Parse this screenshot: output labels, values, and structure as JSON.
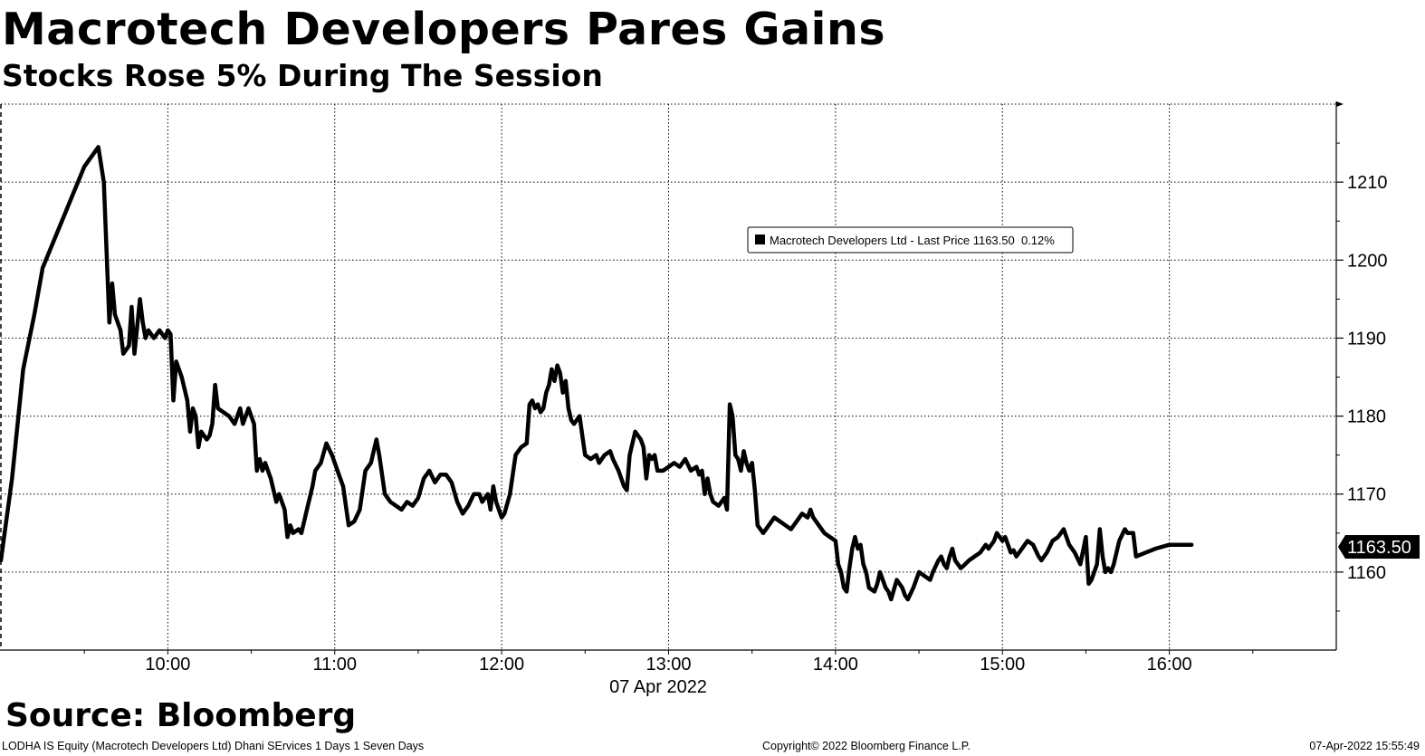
{
  "chart_data": {
    "type": "line",
    "title": "Macrotech Developers Pares Gains",
    "subtitle": "Stocks Rose 5% During The Session",
    "x_ticks": [
      "10:00",
      "11:00",
      "12:00",
      "13:00",
      "14:00",
      "15:00",
      "16:00"
    ],
    "date_label": "07 Apr 2022",
    "y_ticks": [
      1160,
      1170,
      1180,
      1190,
      1200,
      1210
    ],
    "ylim": [
      1150,
      1220
    ],
    "xlim": [
      "09:00",
      "17:00"
    ],
    "grid": true,
    "legend": {
      "swatch_color": "#000000",
      "text": "Macrotech Developers Ltd - Last Price 1163.50  0.12%",
      "placement": "top-center"
    },
    "last_value_label": "1163.50",
    "series": [
      {
        "color": "#000000",
        "values": [
          [
            "09:00",
            1161.5
          ],
          [
            "09:04",
            1172
          ],
          [
            "09:08",
            1186
          ],
          [
            "09:12",
            1193
          ],
          [
            "09:15",
            1199
          ],
          [
            "09:30",
            1212
          ],
          [
            "09:35",
            1214.5
          ],
          [
            "09:37",
            1210
          ],
          [
            "09:39",
            1192
          ],
          [
            "09:40",
            1197
          ],
          [
            "09:41",
            1193
          ],
          [
            "09:43",
            1191
          ],
          [
            "09:44",
            1188
          ],
          [
            "09:46",
            1189
          ],
          [
            "09:47",
            1194
          ],
          [
            "09:48",
            1188
          ],
          [
            "09:50",
            1195
          ],
          [
            "09:51",
            1192
          ],
          [
            "09:52",
            1190
          ],
          [
            "09:53",
            1191
          ],
          [
            "09:55",
            1190
          ],
          [
            "09:57",
            1191
          ],
          [
            "09:59",
            1190
          ],
          [
            "10:00",
            1191
          ],
          [
            "10:01",
            1190.5
          ],
          [
            "10:02",
            1182
          ],
          [
            "10:03",
            1187
          ],
          [
            "10:05",
            1185
          ],
          [
            "10:07",
            1182
          ],
          [
            "10:08",
            1178
          ],
          [
            "10:09",
            1181
          ],
          [
            "10:10",
            1180
          ],
          [
            "10:11",
            1176
          ],
          [
            "10:12",
            1178
          ],
          [
            "10:14",
            1177
          ],
          [
            "10:15",
            1177.5
          ],
          [
            "10:16",
            1179
          ],
          [
            "10:17",
            1184
          ],
          [
            "10:18",
            1181
          ],
          [
            "10:20",
            1180.5
          ],
          [
            "10:22",
            1180
          ],
          [
            "10:24",
            1179
          ],
          [
            "10:26",
            1181
          ],
          [
            "10:27",
            1179
          ],
          [
            "10:29",
            1181
          ],
          [
            "10:31",
            1179
          ],
          [
            "10:32",
            1173
          ],
          [
            "10:33",
            1174.5
          ],
          [
            "10:34",
            1173
          ],
          [
            "10:35",
            1174
          ],
          [
            "10:37",
            1172
          ],
          [
            "10:39",
            1169
          ],
          [
            "10:40",
            1170
          ],
          [
            "10:42",
            1168
          ],
          [
            "10:43",
            1164.5
          ],
          [
            "10:44",
            1166
          ],
          [
            "10:45",
            1165
          ],
          [
            "10:47",
            1165.5
          ],
          [
            "10:48",
            1165
          ],
          [
            "10:50",
            1168
          ],
          [
            "10:52",
            1171
          ],
          [
            "10:53",
            1173
          ],
          [
            "10:55",
            1174
          ],
          [
            "10:57",
            1176.5
          ],
          [
            "10:59",
            1175
          ],
          [
            "11:01",
            1173
          ],
          [
            "11:03",
            1171
          ],
          [
            "11:05",
            1166
          ],
          [
            "11:07",
            1166.5
          ],
          [
            "11:09",
            1168
          ],
          [
            "11:11",
            1173
          ],
          [
            "11:13",
            1174
          ],
          [
            "11:15",
            1177
          ],
          [
            "11:16",
            1175
          ],
          [
            "11:18",
            1170
          ],
          [
            "11:20",
            1169
          ],
          [
            "11:22",
            1168.5
          ],
          [
            "11:24",
            1168
          ],
          [
            "11:26",
            1169
          ],
          [
            "11:28",
            1168.5
          ],
          [
            "11:30",
            1169.5
          ],
          [
            "11:32",
            1172
          ],
          [
            "11:34",
            1173
          ],
          [
            "11:36",
            1171.5
          ],
          [
            "11:38",
            1172.5
          ],
          [
            "11:40",
            1172.5
          ],
          [
            "11:42",
            1171.5
          ],
          [
            "11:44",
            1169
          ],
          [
            "11:46",
            1167.5
          ],
          [
            "11:48",
            1168.5
          ],
          [
            "11:50",
            1170
          ],
          [
            "11:52",
            1170
          ],
          [
            "11:53",
            1169
          ],
          [
            "11:55",
            1170
          ],
          [
            "11:56",
            1168
          ],
          [
            "11:57",
            1171
          ],
          [
            "11:58",
            1169
          ],
          [
            "12:00",
            1167
          ],
          [
            "12:01",
            1167.5
          ],
          [
            "12:03",
            1170
          ],
          [
            "12:05",
            1175
          ],
          [
            "12:07",
            1176
          ],
          [
            "12:09",
            1176.5
          ],
          [
            "12:10",
            1181.5
          ],
          [
            "12:11",
            1182
          ],
          [
            "12:12",
            1181
          ],
          [
            "12:13",
            1181.5
          ],
          [
            "12:14",
            1180.5
          ],
          [
            "12:15",
            1181
          ],
          [
            "12:16",
            1183
          ],
          [
            "12:17",
            1184
          ],
          [
            "12:18",
            1186
          ],
          [
            "12:19",
            1184.5
          ],
          [
            "12:20",
            1186.5
          ],
          [
            "12:21",
            1185.5
          ],
          [
            "12:22",
            1183
          ],
          [
            "12:23",
            1184.5
          ],
          [
            "12:24",
            1181
          ],
          [
            "12:25",
            1179.5
          ],
          [
            "12:26",
            1179
          ],
          [
            "12:28",
            1180
          ],
          [
            "12:29",
            1177.5
          ],
          [
            "12:30",
            1175
          ],
          [
            "12:32",
            1174.5
          ],
          [
            "12:34",
            1175
          ],
          [
            "12:35",
            1174
          ],
          [
            "12:37",
            1175
          ],
          [
            "12:39",
            1175.5
          ],
          [
            "12:40",
            1174.5
          ],
          [
            "12:42",
            1173
          ],
          [
            "12:44",
            1171
          ],
          [
            "12:45",
            1170.5
          ],
          [
            "12:46",
            1175
          ],
          [
            "12:48",
            1178
          ],
          [
            "12:50",
            1177
          ],
          [
            "12:51",
            1176
          ],
          [
            "12:52",
            1172
          ],
          [
            "12:53",
            1175
          ],
          [
            "12:54",
            1174.5
          ],
          [
            "12:55",
            1175
          ],
          [
            "12:56",
            1173
          ],
          [
            "12:58",
            1173
          ],
          [
            "13:00",
            1173.5
          ],
          [
            "13:02",
            1174
          ],
          [
            "13:04",
            1173.5
          ],
          [
            "13:06",
            1174.5
          ],
          [
            "13:08",
            1173
          ],
          [
            "13:10",
            1173.5
          ],
          [
            "13:11",
            1172.5
          ],
          [
            "13:12",
            1173
          ],
          [
            "13:13",
            1170
          ],
          [
            "13:14",
            1172
          ],
          [
            "13:15",
            1170
          ],
          [
            "13:16",
            1169
          ],
          [
            "13:18",
            1168.5
          ],
          [
            "13:19",
            1169
          ],
          [
            "13:20",
            1169.5
          ],
          [
            "13:21",
            1168
          ],
          [
            "13:22",
            1181.5
          ],
          [
            "13:23",
            1180
          ],
          [
            "13:24",
            1175
          ],
          [
            "13:25",
            1174.5
          ],
          [
            "13:26",
            1173
          ],
          [
            "13:27",
            1175.5
          ],
          [
            "13:28",
            1174
          ],
          [
            "13:29",
            1173
          ],
          [
            "13:30",
            1174
          ],
          [
            "13:31",
            1170.5
          ],
          [
            "13:32",
            1166
          ],
          [
            "13:34",
            1165
          ],
          [
            "13:35",
            1165.5
          ],
          [
            "13:37",
            1166.5
          ],
          [
            "13:38",
            1167
          ],
          [
            "13:40",
            1166.5
          ],
          [
            "13:42",
            1166
          ],
          [
            "13:44",
            1165.5
          ],
          [
            "13:46",
            1166.5
          ],
          [
            "13:48",
            1167.5
          ],
          [
            "13:50",
            1167
          ],
          [
            "13:51",
            1168
          ],
          [
            "13:52",
            1167
          ],
          [
            "13:54",
            1166
          ],
          [
            "13:56",
            1165
          ],
          [
            "13:58",
            1164.5
          ],
          [
            "14:00",
            1164
          ],
          [
            "14:01",
            1161
          ],
          [
            "14:02",
            1160
          ],
          [
            "14:03",
            1158
          ],
          [
            "14:04",
            1157.5
          ],
          [
            "14:05",
            1160.5
          ],
          [
            "14:06",
            1163
          ],
          [
            "14:07",
            1164.5
          ],
          [
            "14:08",
            1163
          ],
          [
            "14:09",
            1163.5
          ],
          [
            "14:10",
            1161
          ],
          [
            "14:11",
            1160
          ],
          [
            "14:12",
            1158
          ],
          [
            "14:14",
            1157.5
          ],
          [
            "14:15",
            1158.5
          ],
          [
            "14:16",
            1160
          ],
          [
            "14:17",
            1159
          ],
          [
            "14:18",
            1158
          ],
          [
            "14:19",
            1157.5
          ],
          [
            "14:20",
            1156.5
          ],
          [
            "14:22",
            1159
          ],
          [
            "14:23",
            1158.5
          ],
          [
            "14:24",
            1158
          ],
          [
            "14:25",
            1157
          ],
          [
            "14:26",
            1156.5
          ],
          [
            "14:28",
            1158
          ],
          [
            "14:30",
            1160
          ],
          [
            "14:32",
            1159.5
          ],
          [
            "14:34",
            1159
          ],
          [
            "14:35",
            1160
          ],
          [
            "14:37",
            1161.5
          ],
          [
            "14:38",
            1162
          ],
          [
            "14:39",
            1161
          ],
          [
            "14:40",
            1160.5
          ],
          [
            "14:41",
            1162
          ],
          [
            "14:42",
            1163
          ],
          [
            "14:43",
            1161.5
          ],
          [
            "14:44",
            1161
          ],
          [
            "14:45",
            1160.5
          ],
          [
            "14:46",
            1160.8
          ],
          [
            "14:48",
            1161.5
          ],
          [
            "14:50",
            1162
          ],
          [
            "14:52",
            1162.5
          ],
          [
            "14:54",
            1163.5
          ],
          [
            "14:55",
            1163
          ],
          [
            "14:57",
            1164
          ],
          [
            "14:58",
            1165
          ],
          [
            "15:00",
            1164
          ],
          [
            "15:01",
            1164.5
          ],
          [
            "15:03",
            1162.5
          ],
          [
            "15:04",
            1162.8
          ],
          [
            "15:05",
            1162
          ],
          [
            "15:07",
            1163
          ],
          [
            "15:09",
            1164
          ],
          [
            "15:11",
            1163.5
          ],
          [
            "15:13",
            1162
          ],
          [
            "15:14",
            1161.5
          ],
          [
            "15:15",
            1162
          ],
          [
            "15:16",
            1162.5
          ],
          [
            "15:18",
            1164
          ],
          [
            "15:20",
            1164.5
          ],
          [
            "15:22",
            1165.5
          ],
          [
            "15:24",
            1163.5
          ],
          [
            "15:26",
            1162.5
          ],
          [
            "15:28",
            1161
          ],
          [
            "15:30",
            1164.5
          ],
          [
            "15:31",
            1158.5
          ],
          [
            "15:32",
            1159
          ],
          [
            "15:34",
            1161
          ],
          [
            "15:35",
            1165.5
          ],
          [
            "15:36",
            1162
          ],
          [
            "15:37",
            1160
          ],
          [
            "15:38",
            1160.5
          ],
          [
            "15:39",
            1160
          ],
          [
            "15:40",
            1161
          ],
          [
            "15:42",
            1164
          ],
          [
            "15:44",
            1165.5
          ],
          [
            "15:45",
            1165
          ],
          [
            "15:47",
            1165
          ],
          [
            "15:48",
            1162
          ],
          [
            "15:55",
            1163
          ],
          [
            "16:00",
            1163.5
          ],
          [
            "16:08",
            1163.5
          ]
        ]
      }
    ]
  },
  "footer": {
    "source": "Source: Bloomberg",
    "left": "LODHA IS Equity (Macrotech Developers Ltd) Dhani SErvices 1 Days 1 Seven Days",
    "center": "Copyright© 2022 Bloomberg Finance L.P.",
    "right": "07-Apr-2022 15:55:49"
  }
}
